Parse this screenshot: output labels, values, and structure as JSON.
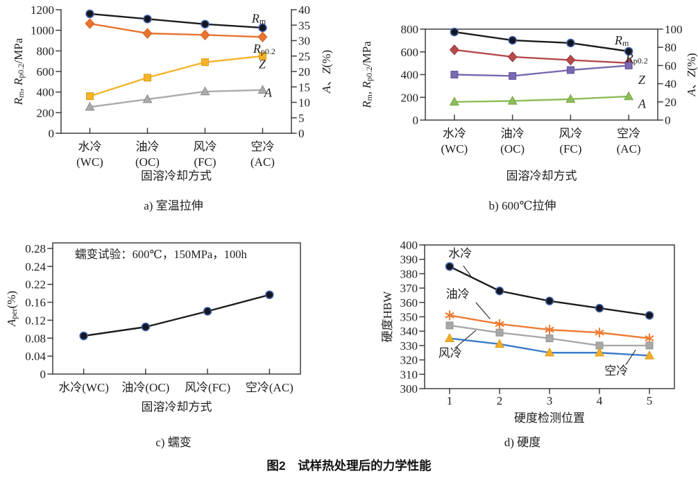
{
  "figure_title": "图2　试样热处理后的力学性能",
  "chart_data": [
    {
      "id": "a",
      "type": "line",
      "caption": "a) 室温拉伸",
      "x_axis": {
        "label": "固溶冷却方式",
        "categories": [
          "水冷",
          "油冷",
          "风冷",
          "空冷"
        ],
        "codes": [
          "(WC)",
          "(OC)",
          "(FC)",
          "(AC)"
        ]
      },
      "left_axis": {
        "label": "*R*_{m}, *R*_{p0.2}/MPa",
        "ticks": [
          0,
          200,
          400,
          600,
          800,
          1000,
          1200
        ]
      },
      "right_axis": {
        "label": "*A*、*Z*(%)",
        "ticks": [
          0,
          5,
          10,
          15,
          20,
          25,
          30,
          35,
          40
        ]
      },
      "series": [
        {
          "name": "Rm",
          "axis": "left",
          "values": [
            1160,
            1110,
            1060,
            1025
          ],
          "color": "#1c1c1c",
          "marker": "circle",
          "marker_fill": "#14161f",
          "marker_stroke": "#3d5ea6"
        },
        {
          "name": "Rp0.2",
          "axis": "left",
          "values": [
            1065,
            970,
            955,
            935
          ],
          "color": "#e8742f",
          "marker": "diamond",
          "marker_fill": "#e8742f",
          "marker_stroke": "#d2611d"
        },
        {
          "name": "Z",
          "axis": "right",
          "values": [
            12,
            18,
            23,
            25
          ],
          "color": "#f5b32a",
          "marker": "square",
          "marker_fill": "#f5b32a",
          "marker_stroke": "#dd9c12"
        },
        {
          "name": "A",
          "axis": "right",
          "values": [
            8.5,
            11,
            13.5,
            14
          ],
          "color": "#ababab",
          "marker": "triangle",
          "marker_fill": "#ababab",
          "marker_stroke": "#8f8f8f"
        }
      ],
      "labels": [
        {
          "text": "*R*_{m}",
          "fx": 0.828,
          "fy": 0.07
        },
        {
          "text": "*R*_{p0.2}",
          "fx": 0.834,
          "fy": 0.315
        },
        {
          "text": "*Z*",
          "fx": 0.858,
          "fy": 0.44
        },
        {
          "text": "*A*",
          "fx": 0.882,
          "fy": 0.67
        }
      ]
    },
    {
      "id": "b",
      "type": "line",
      "caption": "b) 600℃拉伸",
      "x_axis": {
        "label": "固溶冷却方式",
        "categories": [
          "水冷",
          "油冷",
          "风冷",
          "空冷"
        ],
        "codes": [
          "(WC)",
          "(OC)",
          "(FC)",
          "(AC)"
        ]
      },
      "left_axis": {
        "label": "*R*_{m}, *R*_{p0.2}/MPa",
        "ticks": [
          0,
          200,
          400,
          600,
          800
        ]
      },
      "right_axis": {
        "label": "*A*、*Z*(%)",
        "ticks": [
          0,
          20,
          40,
          60,
          80,
          100
        ]
      },
      "series": [
        {
          "name": "Rm",
          "axis": "left",
          "values": [
            775,
            702,
            678,
            605
          ],
          "color": "#1c1c1c",
          "marker": "circle",
          "marker_fill": "#14161f",
          "marker_stroke": "#3d5ea6"
        },
        {
          "name": "Rp0.2",
          "axis": "left",
          "values": [
            618,
            556,
            528,
            502
          ],
          "color": "#b6494b",
          "marker": "diamond",
          "marker_fill": "#b6494b",
          "marker_stroke": "#9c393b"
        },
        {
          "name": "Z",
          "axis": "right",
          "values": [
            50,
            48.5,
            55,
            60
          ],
          "color": "#7a68b0",
          "marker": "square",
          "marker_fill": "#7a68b0",
          "marker_stroke": "#64539a"
        },
        {
          "name": "A",
          "axis": "right",
          "values": [
            20,
            21,
            23,
            26
          ],
          "color": "#8dbd5a",
          "marker": "triangle",
          "marker_fill": "#8dbd5a",
          "marker_stroke": "#76a646"
        }
      ],
      "labels": [
        {
          "text": "*R*_{m}",
          "fx": 0.815,
          "fy": 0.122
        },
        {
          "text": "*R*_{p0.2}",
          "fx": 0.862,
          "fy": 0.315
        },
        {
          "text": "*Z*",
          "fx": 0.916,
          "fy": 0.557
        },
        {
          "text": "*A*",
          "fx": 0.916,
          "fy": 0.82
        }
      ]
    },
    {
      "id": "c",
      "type": "line",
      "caption": "c) 蠕变",
      "x_axis": {
        "label": "固溶冷却方式",
        "categories": [
          "水冷(WC)",
          "油冷(OC)",
          "风冷(FC)",
          "空冷(AC)"
        ]
      },
      "left_axis": {
        "label": "*A*_{per}(%)",
        "ticks": [
          0,
          0.04,
          0.08,
          0.12,
          0.16,
          0.22,
          0.24,
          0.28
        ],
        "tick_labels": [
          "0",
          "0.04",
          "0.08",
          "0.12",
          "0.16",
          "0.22",
          "0.24",
          "0.28"
        ]
      },
      "annotations": [
        {
          "text": "蠕变试验：600℃，150MPa，100h",
          "fx": 0.09,
          "fy": 0.085
        }
      ],
      "series": [
        {
          "name": "Aper",
          "axis": "left",
          "values": [
            0.085,
            0.105,
            0.14,
            0.185
          ],
          "color": "#1c1c1c",
          "marker": "circle",
          "marker_fill": "#14161f",
          "marker_stroke": "#3d5ea6"
        }
      ]
    },
    {
      "id": "d",
      "type": "line",
      "caption": "d) 硬度",
      "x_axis": {
        "label": "硬度检测位置",
        "categories": [
          "1",
          "2",
          "3",
          "4",
          "5"
        ]
      },
      "left_axis": {
        "label": "硬度HBW",
        "ticks": [
          300,
          310,
          320,
          330,
          340,
          350,
          360,
          370,
          380,
          390,
          400
        ]
      },
      "series": [
        {
          "name": "水冷",
          "axis": "left",
          "values": [
            385,
            368,
            361,
            356,
            351
          ],
          "color": "#1c1c1c",
          "marker": "circle",
          "marker_fill": "#14161f",
          "marker_stroke": "#3d5ea6"
        },
        {
          "name": "油冷",
          "axis": "left",
          "values": [
            351,
            345,
            341,
            339,
            335
          ],
          "color": "#ee7c33",
          "marker": "star",
          "marker_fill": "#ee7c33",
          "marker_stroke": "#ee7c33"
        },
        {
          "name": "风冷",
          "axis": "left",
          "values": [
            344,
            339,
            335,
            330,
            330
          ],
          "color": "#a8a8a8",
          "marker": "square",
          "marker_fill": "#a8a8a8",
          "marker_stroke": "#949494"
        },
        {
          "name": "空冷",
          "axis": "left",
          "values": [
            335,
            331,
            325,
            325,
            323
          ],
          "color": "#3a7cc9",
          "marker": "triangle",
          "marker_fill": "#f2ae2b",
          "marker_stroke": "#d99a14"
        }
      ],
      "leader_labels": [
        {
          "text": "水冷",
          "fx": 0.095,
          "fy": 0.058,
          "line": [
            0.155,
            0.145,
            0.185,
            0.215
          ]
        },
        {
          "text": "油冷",
          "fx": 0.085,
          "fy": 0.34,
          "line": [
            0.205,
            0.4,
            0.262,
            0.515
          ]
        },
        {
          "text": "风冷",
          "fx": 0.055,
          "fy": 0.75,
          "line": [
            0.12,
            0.72,
            0.205,
            0.595
          ]
        },
        {
          "text": "空冷",
          "fx": 0.72,
          "fy": 0.875,
          "line": [
            0.805,
            0.835,
            0.845,
            0.73
          ]
        }
      ]
    }
  ]
}
